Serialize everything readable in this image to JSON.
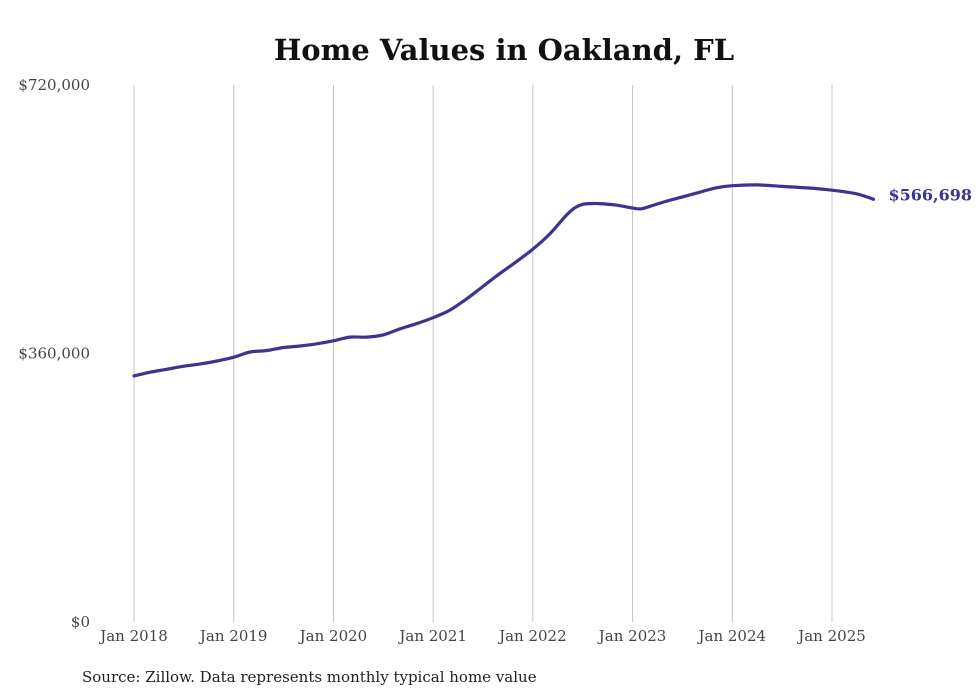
{
  "source_note": "Source: Zillow. Data represents monthly typical home value",
  "chart_data": {
    "type": "line",
    "title": "Home Values in Oakland, FL",
    "xlabel": "",
    "ylabel": "",
    "x_start": "2018-01",
    "xlim": [
      "2018-01",
      "2025-06"
    ],
    "x_ticks": [
      "Jan 2018",
      "Jan 2019",
      "Jan 2020",
      "Jan 2021",
      "Jan 2022",
      "Jan 2023",
      "Jan 2024",
      "Jan 2025"
    ],
    "y_ticks": [
      "$720,000",
      "$360,000",
      "$0"
    ],
    "y_tick_values": [
      720000,
      360000,
      0
    ],
    "ylim": [
      0,
      720000
    ],
    "grid": "vertical",
    "line_color": "#3b3491",
    "end_label": "$566,698",
    "series": [
      {
        "x": [
          "2018-01",
          "2018-03",
          "2018-05",
          "2018-07",
          "2018-09",
          "2018-11",
          "2019-01",
          "2019-03",
          "2019-05",
          "2019-07",
          "2019-09",
          "2019-11",
          "2020-01",
          "2020-03",
          "2020-05",
          "2020-07",
          "2020-09",
          "2020-11",
          "2021-01",
          "2021-03",
          "2021-05",
          "2021-07",
          "2021-09",
          "2021-11",
          "2022-01",
          "2022-03",
          "2022-05",
          "2022-06",
          "2022-07",
          "2022-08",
          "2022-09",
          "2022-11",
          "2023-01",
          "2023-02",
          "2023-03",
          "2023-05",
          "2023-07",
          "2023-09",
          "2023-11",
          "2024-01",
          "2024-04",
          "2024-07",
          "2024-10",
          "2025-01",
          "2025-04",
          "2025-06"
        ],
        "values": [
          330000,
          335000,
          339000,
          343000,
          346000,
          350000,
          355000,
          362000,
          364000,
          368000,
          370000,
          373000,
          377000,
          382000,
          382000,
          385000,
          393000,
          400000,
          408000,
          418000,
          433000,
          450000,
          467000,
          483000,
          500000,
          520000,
          545000,
          555000,
          560000,
          561000,
          561000,
          559000,
          555000,
          554000,
          557000,
          564000,
          570000,
          576000,
          582000,
          585000,
          586000,
          584000,
          582000,
          579000,
          574000,
          566698
        ]
      }
    ]
  }
}
